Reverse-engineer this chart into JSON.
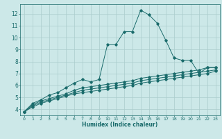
{
  "title": "",
  "xlabel": "Humidex (Indice chaleur)",
  "bg_color": "#cce8e8",
  "grid_color": "#aacccc",
  "line_color": "#1a6b6b",
  "xlim": [
    -0.5,
    23.5
  ],
  "ylim": [
    3.5,
    12.8
  ],
  "xticks": [
    0,
    1,
    2,
    3,
    4,
    5,
    6,
    7,
    8,
    9,
    10,
    11,
    12,
    13,
    14,
    15,
    16,
    17,
    18,
    19,
    20,
    21,
    22,
    23
  ],
  "yticks": [
    4,
    5,
    6,
    7,
    8,
    9,
    10,
    11,
    12
  ],
  "series1": [
    [
      0,
      3.8
    ],
    [
      1,
      4.5
    ],
    [
      2,
      4.8
    ],
    [
      3,
      5.2
    ],
    [
      4,
      5.4
    ],
    [
      5,
      5.8
    ],
    [
      6,
      6.2
    ],
    [
      7,
      6.5
    ],
    [
      8,
      6.3
    ],
    [
      9,
      6.5
    ],
    [
      10,
      9.4
    ],
    [
      11,
      9.4
    ],
    [
      12,
      10.5
    ],
    [
      13,
      10.5
    ],
    [
      14,
      12.3
    ],
    [
      15,
      11.9
    ],
    [
      16,
      11.2
    ],
    [
      17,
      9.8
    ],
    [
      18,
      8.3
    ],
    [
      19,
      8.1
    ],
    [
      20,
      8.1
    ],
    [
      21,
      7.0
    ],
    [
      22,
      7.5
    ],
    [
      23,
      7.5
    ]
  ],
  "series2": [
    [
      0,
      3.8
    ],
    [
      1,
      4.4
    ],
    [
      2,
      4.7
    ],
    [
      3,
      4.9
    ],
    [
      4,
      5.1
    ],
    [
      5,
      5.3
    ],
    [
      6,
      5.6
    ],
    [
      7,
      5.8
    ],
    [
      8,
      5.9
    ],
    [
      9,
      6.0
    ],
    [
      10,
      6.1
    ],
    [
      11,
      6.2
    ],
    [
      12,
      6.3
    ],
    [
      13,
      6.4
    ],
    [
      14,
      6.6
    ],
    [
      15,
      6.7
    ],
    [
      16,
      6.8
    ],
    [
      17,
      6.9
    ],
    [
      18,
      7.0
    ],
    [
      19,
      7.1
    ],
    [
      20,
      7.2
    ],
    [
      21,
      7.3
    ],
    [
      22,
      7.5
    ],
    [
      23,
      7.5
    ]
  ],
  "series3": [
    [
      0,
      3.8
    ],
    [
      1,
      4.3
    ],
    [
      2,
      4.6
    ],
    [
      3,
      4.8
    ],
    [
      4,
      5.0
    ],
    [
      5,
      5.2
    ],
    [
      6,
      5.4
    ],
    [
      7,
      5.6
    ],
    [
      8,
      5.7
    ],
    [
      9,
      5.8
    ],
    [
      10,
      5.9
    ],
    [
      11,
      6.0
    ],
    [
      12,
      6.1
    ],
    [
      13,
      6.2
    ],
    [
      14,
      6.4
    ],
    [
      15,
      6.5
    ],
    [
      16,
      6.6
    ],
    [
      17,
      6.7
    ],
    [
      18,
      6.8
    ],
    [
      19,
      6.9
    ],
    [
      20,
      7.0
    ],
    [
      21,
      7.1
    ],
    [
      22,
      7.2
    ],
    [
      23,
      7.3
    ]
  ],
  "series4": [
    [
      0,
      3.8
    ],
    [
      1,
      4.2
    ],
    [
      2,
      4.5
    ],
    [
      3,
      4.7
    ],
    [
      4,
      4.9
    ],
    [
      5,
      5.1
    ],
    [
      6,
      5.3
    ],
    [
      7,
      5.4
    ],
    [
      8,
      5.5
    ],
    [
      9,
      5.6
    ],
    [
      10,
      5.7
    ],
    [
      11,
      5.8
    ],
    [
      12,
      5.9
    ],
    [
      13,
      6.0
    ],
    [
      14,
      6.2
    ],
    [
      15,
      6.3
    ],
    [
      16,
      6.4
    ],
    [
      17,
      6.5
    ],
    [
      18,
      6.6
    ],
    [
      19,
      6.7
    ],
    [
      20,
      6.8
    ],
    [
      21,
      6.9
    ],
    [
      22,
      7.0
    ],
    [
      23,
      7.2
    ]
  ]
}
